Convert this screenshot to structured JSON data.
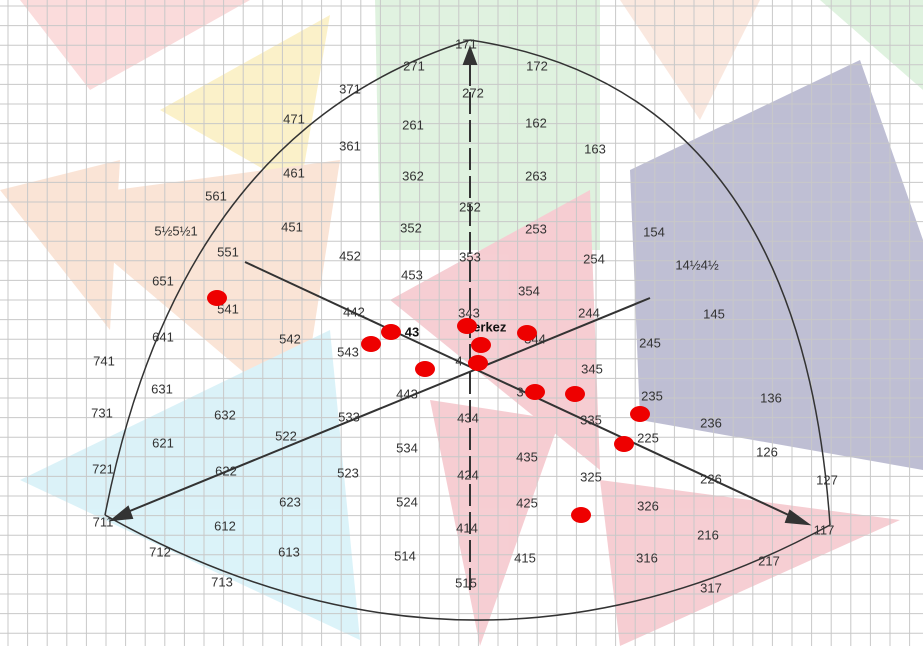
{
  "labels": [
    "171",
    "271",
    "172",
    "371",
    "272",
    "471",
    "261",
    "162",
    "361",
    "163",
    "461",
    "362",
    "263",
    "561",
    "252",
    "5½5½1",
    "451",
    "352",
    "253",
    "154",
    "551",
    "452",
    "353",
    "254",
    "14½4½",
    "651",
    "453",
    "354",
    "541",
    "442",
    "343",
    "244",
    "145",
    "641",
    "542",
    "43",
    "merkez",
    "543",
    "344",
    "245",
    "741",
    "4",
    "345",
    "631",
    "443",
    "3",
    "235",
    "136",
    "731",
    "632",
    "533",
    "434",
    "335",
    "236",
    "621",
    "522",
    "534",
    "225",
    "126",
    "435",
    "721",
    "622",
    "523",
    "424",
    "325",
    "226",
    "127",
    "623",
    "524",
    "425",
    "326",
    "711",
    "612",
    "414",
    "216",
    "117",
    "712",
    "613",
    "514",
    "415",
    "316",
    "217",
    "713",
    "515",
    "317"
  ]
}
